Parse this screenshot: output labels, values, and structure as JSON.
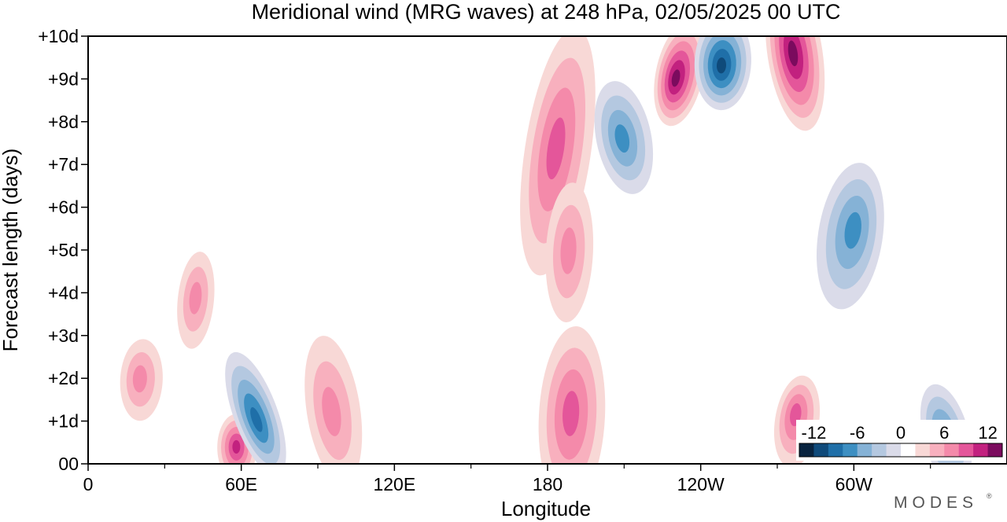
{
  "chart_data": {
    "type": "heatmap",
    "title": "Meridional wind (MRG waves) at  248 hPa,  02/05/2025  00 UTC",
    "xlabel": "Longitude",
    "ylabel": "Forecast length (days)",
    "x_ticks": [
      "0",
      "60E",
      "120E",
      "180",
      "120W",
      "60W"
    ],
    "y_ticks": [
      "00",
      "+1d",
      "+2d",
      "+3d",
      "+4d",
      "+5d",
      "+6d",
      "+7d",
      "+8d",
      "+9d",
      "+10d"
    ],
    "xlim_deg_east": [
      0,
      360
    ],
    "ylim_days": [
      0,
      10
    ],
    "colorbar": {
      "tick_labels": [
        "-12",
        "-6",
        "0",
        "6",
        "12"
      ],
      "levels": [
        -14,
        -12,
        -10,
        -8,
        -6,
        -4,
        -2,
        0,
        2,
        4,
        6,
        8,
        10,
        12,
        14
      ],
      "colors": [
        "#08233f",
        "#0f4a7a",
        "#1f6fa8",
        "#3d8fc2",
        "#85b2d6",
        "#b4c8e0",
        "#dadbe9",
        "#ffffff",
        "#f8d8d6",
        "#f8b0be",
        "#f48aaa",
        "#e4569a",
        "#c2217f",
        "#7b0b5e"
      ],
      "placement": "bottom-right"
    },
    "features": [
      {
        "lon": 20,
        "day": 2.0,
        "value": 6
      },
      {
        "lon": 42,
        "day": 3.9,
        "value": 6
      },
      {
        "lon": 58,
        "day": 0.4,
        "value": 9
      },
      {
        "lon": 66,
        "day": 1.0,
        "value": -10
      },
      {
        "lon": 95,
        "day": 1.2,
        "value": 5
      },
      {
        "lon": 183,
        "day": 7.4,
        "value": 8
      },
      {
        "lon": 188,
        "day": 5.0,
        "value": 6
      },
      {
        "lon": 189,
        "day": 1.2,
        "value": 8
      },
      {
        "lon": 209,
        "day": 7.6,
        "value": -8
      },
      {
        "lon": 230,
        "day": 9.0,
        "value": 12
      },
      {
        "lon": 248,
        "day": 9.3,
        "value": -12
      },
      {
        "lon": 276,
        "day": 9.6,
        "value": 12
      },
      {
        "lon": 277,
        "day": 1.2,
        "value": 8
      },
      {
        "lon": 300,
        "day": 5.5,
        "value": -7
      },
      {
        "lon": 335,
        "day": 0.7,
        "value": -8
      }
    ]
  },
  "branding": {
    "logo_text": "MODES",
    "mark": "®"
  }
}
